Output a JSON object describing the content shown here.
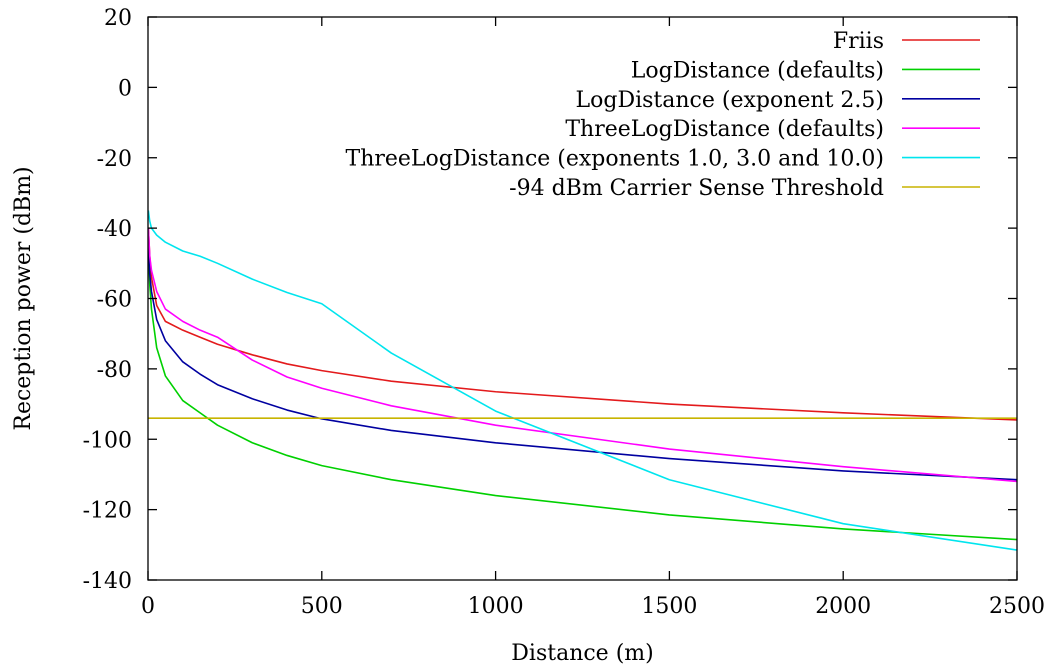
{
  "chart_data": {
    "type": "line",
    "title": "",
    "xlabel": "Distance (m)",
    "ylabel": "Reception power (dBm)",
    "xlim": [
      0,
      2500
    ],
    "ylim": [
      -140,
      20
    ],
    "x_ticks": [
      0,
      500,
      1000,
      1500,
      2000,
      2500
    ],
    "y_ticks": [
      20,
      0,
      -20,
      -40,
      -60,
      -80,
      -100,
      -120,
      -140
    ],
    "x_tick_labels": [
      "0",
      "500",
      "1000",
      "1500",
      "2000",
      "2500"
    ],
    "y_tick_labels": [
      "20",
      "0",
      "-20",
      "-40",
      "-60",
      "-80",
      "-100",
      "-120",
      "-140"
    ],
    "grid": false,
    "legend_position": "top-right",
    "series": [
      {
        "name": "Friis",
        "color": "#e31a1c",
        "points": [
          [
            1,
            -40
          ],
          [
            5,
            -48
          ],
          [
            10,
            -54
          ],
          [
            25,
            -62
          ],
          [
            50,
            -66.5
          ],
          [
            100,
            -69
          ],
          [
            150,
            -71
          ],
          [
            200,
            -73
          ],
          [
            300,
            -76
          ],
          [
            400,
            -78.6
          ],
          [
            500,
            -80.5
          ],
          [
            700,
            -83.5
          ],
          [
            1000,
            -86.5
          ],
          [
            1500,
            -90
          ],
          [
            2000,
            -92.5
          ],
          [
            2500,
            -94.5
          ]
        ]
      },
      {
        "name": "LogDistance (defaults)",
        "color": "#00d000",
        "points": [
          [
            1,
            -46
          ],
          [
            5,
            -56
          ],
          [
            10,
            -63
          ],
          [
            25,
            -74
          ],
          [
            50,
            -82
          ],
          [
            100,
            -89
          ],
          [
            150,
            -92.5
          ],
          [
            200,
            -96
          ],
          [
            300,
            -101
          ],
          [
            400,
            -104.6
          ],
          [
            500,
            -107.5
          ],
          [
            700,
            -111.5
          ],
          [
            1000,
            -116
          ],
          [
            1500,
            -121.5
          ],
          [
            2000,
            -125.5
          ],
          [
            2500,
            -128.5
          ]
        ]
      },
      {
        "name": "LogDistance (exponent 2.5)",
        "color": "#0000a0",
        "points": [
          [
            1,
            -43
          ],
          [
            5,
            -53
          ],
          [
            10,
            -58
          ],
          [
            25,
            -66
          ],
          [
            50,
            -72
          ],
          [
            100,
            -78
          ],
          [
            150,
            -81.5
          ],
          [
            200,
            -84.5
          ],
          [
            300,
            -88.5
          ],
          [
            400,
            -91.7
          ],
          [
            500,
            -94.2
          ],
          [
            700,
            -97.5
          ],
          [
            1000,
            -101
          ],
          [
            1500,
            -105.5
          ],
          [
            2000,
            -109
          ],
          [
            2500,
            -111.5
          ]
        ]
      },
      {
        "name": "ThreeLogDistance (defaults)",
        "color": "#ff00ff",
        "points": [
          [
            1,
            -40
          ],
          [
            5,
            -48
          ],
          [
            10,
            -52
          ],
          [
            25,
            -58
          ],
          [
            50,
            -63
          ],
          [
            100,
            -66.5
          ],
          [
            150,
            -69
          ],
          [
            200,
            -71
          ],
          [
            300,
            -77.5
          ],
          [
            400,
            -82.3
          ],
          [
            500,
            -85.5
          ],
          [
            700,
            -90.5
          ],
          [
            1000,
            -96
          ],
          [
            1500,
            -102.8
          ],
          [
            2000,
            -107.8
          ],
          [
            2500,
            -112
          ]
        ]
      },
      {
        "name": "ThreeLogDistance (exponents 1.0, 3.0 and 10.0)",
        "color": "#00e5ee",
        "points": [
          [
            1,
            -35
          ],
          [
            5,
            -38
          ],
          [
            10,
            -40
          ],
          [
            25,
            -42
          ],
          [
            50,
            -44
          ],
          [
            100,
            -46.5
          ],
          [
            150,
            -48
          ],
          [
            200,
            -50
          ],
          [
            300,
            -54.5
          ],
          [
            400,
            -58.3
          ],
          [
            500,
            -61.5
          ],
          [
            700,
            -75.5
          ],
          [
            1000,
            -92
          ],
          [
            1500,
            -111.5
          ],
          [
            2000,
            -124
          ],
          [
            2500,
            -131.5
          ]
        ]
      },
      {
        "name": "-94 dBm Carrier Sense Threshold",
        "color": "#c8b400",
        "points": [
          [
            0,
            -94
          ],
          [
            2500,
            -94
          ]
        ]
      }
    ]
  }
}
